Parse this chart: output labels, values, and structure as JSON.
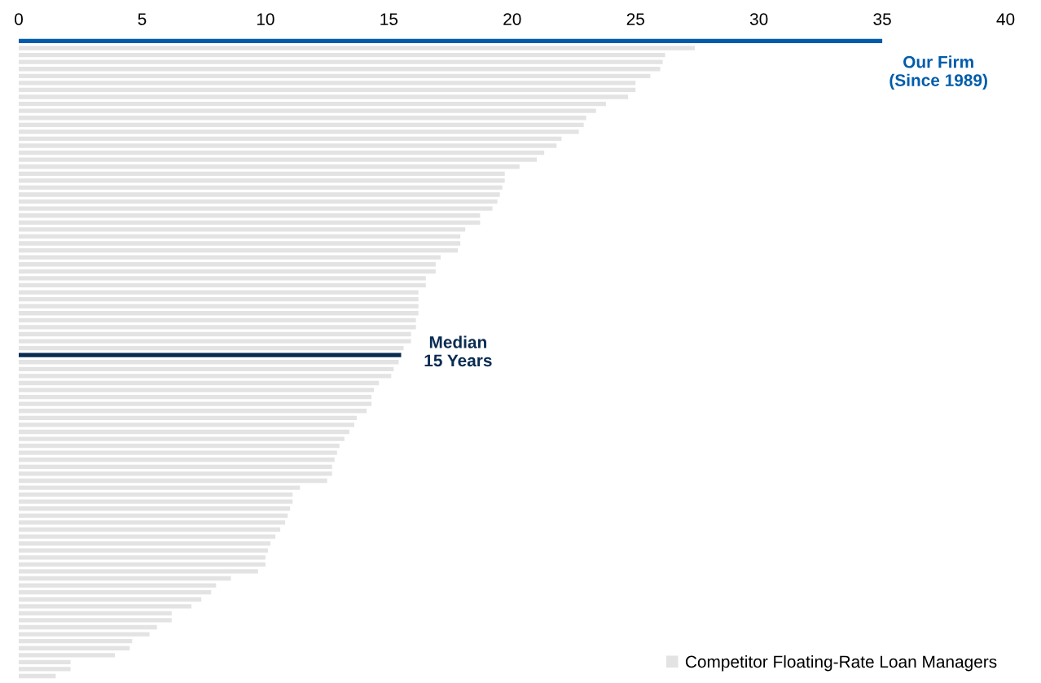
{
  "chart_data": {
    "type": "bar",
    "orientation": "horizontal",
    "categories": [
      null,
      null,
      null,
      null,
      null,
      null,
      null,
      null,
      null,
      null,
      null,
      null,
      null,
      null,
      null,
      null,
      null,
      null,
      null,
      null,
      null,
      null,
      null,
      null,
      null,
      null,
      null,
      null,
      null,
      null,
      null,
      null,
      null,
      null,
      null,
      null,
      null,
      null,
      null,
      null,
      null,
      null,
      null,
      null,
      null,
      null,
      null,
      null,
      null,
      null,
      null,
      null,
      null,
      null,
      null,
      null,
      null,
      null,
      null,
      null,
      null,
      null,
      null,
      null,
      null,
      null,
      null,
      null,
      null,
      null,
      null,
      null,
      null,
      null,
      null,
      null,
      null,
      null,
      null,
      null,
      null,
      null,
      null,
      null,
      null,
      null,
      null,
      null,
      null,
      null,
      null,
      null
    ],
    "series": [
      {
        "name": "Competitor Floating-Rate Loan Managers",
        "color": "#e3e3e3",
        "values": [
          35,
          27.4,
          26.2,
          26.1,
          26.0,
          25.6,
          25.0,
          25.0,
          24.7,
          23.8,
          23.4,
          23.0,
          22.9,
          22.7,
          22.0,
          21.8,
          21.3,
          21.0,
          20.3,
          19.7,
          19.7,
          19.6,
          19.5,
          19.4,
          19.2,
          18.7,
          18.7,
          18.1,
          17.9,
          17.9,
          17.8,
          17.1,
          16.9,
          16.9,
          16.5,
          16.5,
          16.2,
          16.2,
          16.2,
          16.2,
          16.1,
          16.1,
          15.9,
          15.9,
          15.6,
          15.5,
          15.4,
          15.2,
          15.1,
          14.6,
          14.4,
          14.3,
          14.3,
          14.1,
          13.7,
          13.6,
          13.4,
          13.2,
          13.0,
          12.9,
          12.8,
          12.7,
          12.7,
          12.5,
          11.4,
          11.1,
          11.1,
          11.0,
          10.9,
          10.8,
          10.6,
          10.4,
          10.2,
          10.1,
          10.0,
          10.0,
          9.7,
          8.6,
          8.0,
          7.8,
          7.4,
          7.0,
          6.2,
          6.2,
          5.6,
          5.3,
          4.6,
          4.5,
          3.9,
          2.1,
          2.1,
          1.5
        ],
        "colors": [
          "#005cab",
          "#e3e3e3",
          "#e3e3e3",
          "#e3e3e3",
          "#e3e3e3",
          "#e3e3e3",
          "#e3e3e3",
          "#e3e3e3",
          "#e3e3e3",
          "#e3e3e3",
          "#e3e3e3",
          "#e3e3e3",
          "#e3e3e3",
          "#e3e3e3",
          "#e3e3e3",
          "#e3e3e3",
          "#e3e3e3",
          "#e3e3e3",
          "#e3e3e3",
          "#e3e3e3",
          "#e3e3e3",
          "#e3e3e3",
          "#e3e3e3",
          "#e3e3e3",
          "#e3e3e3",
          "#e3e3e3",
          "#e3e3e3",
          "#e3e3e3",
          "#e3e3e3",
          "#e3e3e3",
          "#e3e3e3",
          "#e3e3e3",
          "#e3e3e3",
          "#e3e3e3",
          "#e3e3e3",
          "#e3e3e3",
          "#e3e3e3",
          "#e3e3e3",
          "#e3e3e3",
          "#e3e3e3",
          "#e3e3e3",
          "#e3e3e3",
          "#e3e3e3",
          "#e3e3e3",
          "#e3e3e3",
          "#0a2c52",
          "#e3e3e3",
          "#e3e3e3",
          "#e3e3e3",
          "#e3e3e3",
          "#e3e3e3",
          "#e3e3e3",
          "#e3e3e3",
          "#e3e3e3",
          "#e3e3e3",
          "#e3e3e3",
          "#e3e3e3",
          "#e3e3e3",
          "#e3e3e3",
          "#e3e3e3",
          "#e3e3e3",
          "#e3e3e3",
          "#e3e3e3",
          "#e3e3e3",
          "#e3e3e3",
          "#e3e3e3",
          "#e3e3e3",
          "#e3e3e3",
          "#e3e3e3",
          "#e3e3e3",
          "#e3e3e3",
          "#e3e3e3",
          "#e3e3e3",
          "#e3e3e3",
          "#e3e3e3",
          "#e3e3e3",
          "#e3e3e3",
          "#e3e3e3",
          "#e3e3e3",
          "#e3e3e3",
          "#e3e3e3",
          "#e3e3e3",
          "#e3e3e3",
          "#e3e3e3",
          "#e3e3e3",
          "#e3e3e3",
          "#e3e3e3",
          "#e3e3e3",
          "#e3e3e3",
          "#e3e3e3",
          "#e3e3e3",
          "#e3e3e3"
        ]
      }
    ],
    "xlim": [
      0,
      40
    ],
    "xticks": [
      0,
      5,
      10,
      15,
      20,
      25,
      30,
      35,
      40
    ],
    "annotations": [
      "Our Firm\n(Since 1989)",
      {
        "text": "Median\n15 Years",
        "x": 15.5
      }
    ],
    "legend": "bottom right",
    "grid": false
  }
}
